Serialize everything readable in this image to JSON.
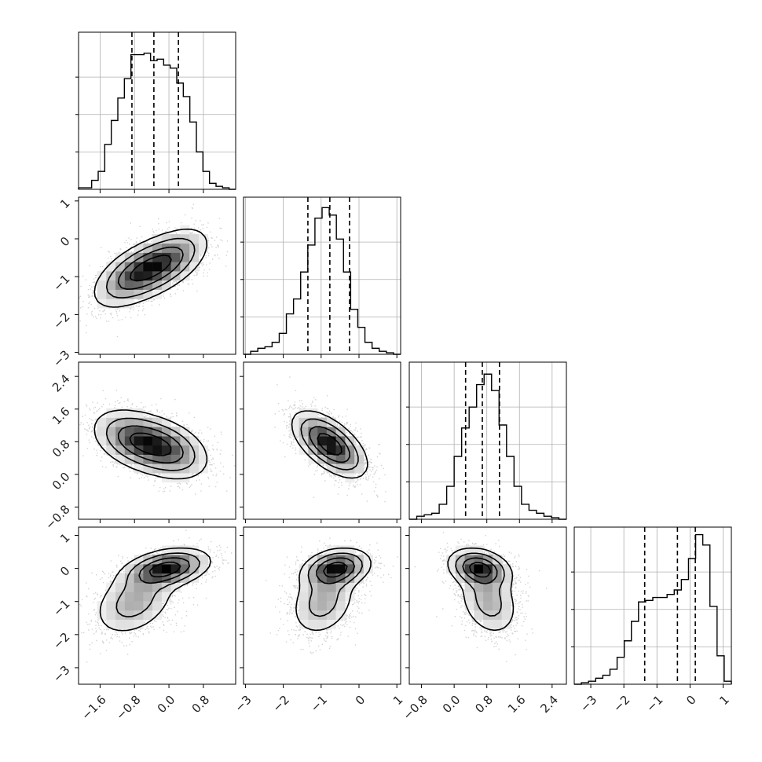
{
  "chart_data": {
    "type": "corner",
    "n_params": 4,
    "grid": true,
    "colors": {
      "ink": "#000000",
      "scatter": "#7f7f7f",
      "grid": "#b0b0b0"
    },
    "params": [
      {
        "range": [
          -2.1,
          1.55
        ],
        "ticks": [
          -1.6,
          -0.8,
          0.0,
          0.8
        ],
        "tick_labels": [
          "−1.6",
          "−0.8",
          "0.0",
          "0.8"
        ],
        "quantiles": [
          -0.86,
          -0.35,
          0.22
        ],
        "hist": [
          0.01,
          0.01,
          0.06,
          0.12,
          0.3,
          0.46,
          0.61,
          0.74,
          0.9,
          0.9,
          0.91,
          0.86,
          0.87,
          0.83,
          0.81,
          0.71,
          0.62,
          0.45,
          0.25,
          0.12,
          0.04,
          0.02,
          0.01,
          0.0
        ],
        "mixture": [
          [
            -0.8,
            0.5,
            0.5
          ],
          [
            -0.05,
            0.5,
            0.5
          ]
        ]
      },
      {
        "range": [
          -3.05,
          1.1
        ],
        "ticks": [
          -3,
          -2,
          -1,
          0,
          1
        ],
        "tick_labels": [
          "−3",
          "−2",
          "−1",
          "0",
          "1"
        ],
        "quantiles": [
          -1.35,
          -0.77,
          -0.25
        ],
        "hist": [
          0.0,
          0.02,
          0.04,
          0.05,
          0.08,
          0.14,
          0.27,
          0.37,
          0.55,
          0.73,
          0.91,
          0.98,
          0.93,
          0.77,
          0.55,
          0.3,
          0.18,
          0.08,
          0.04,
          0.02,
          0.01,
          0.0
        ],
        "mixture": [
          [
            -0.95,
            0.45,
            0.5
          ],
          [
            -0.6,
            0.45,
            0.5
          ]
        ]
      },
      {
        "range": [
          -1.1,
          2.75
        ],
        "ticks": [
          -0.8,
          0.0,
          0.8,
          1.6,
          2.4
        ],
        "tick_labels": [
          "−0.8",
          "0.0",
          "0.8",
          "1.6",
          "2.4"
        ],
        "quantiles": [
          0.28,
          0.69,
          1.11
        ],
        "hist": [
          0.0,
          0.02,
          0.03,
          0.04,
          0.1,
          0.22,
          0.42,
          0.61,
          0.75,
          0.9,
          0.97,
          0.86,
          0.63,
          0.42,
          0.22,
          0.1,
          0.06,
          0.04,
          0.02,
          0.01,
          0.0
        ],
        "mixture": [
          [
            0.85,
            0.38,
            0.5
          ],
          [
            0.62,
            0.38,
            0.5
          ]
        ]
      },
      {
        "range": [
          -3.5,
          1.25
        ],
        "ticks": [
          -3,
          -2,
          -1,
          0,
          1
        ],
        "tick_labels": [
          "−3",
          "−2",
          "−1",
          "0",
          "1"
        ],
        "quantiles": [
          -1.37,
          -0.38,
          0.16
        ],
        "hist": [
          0.0,
          0.01,
          0.02,
          0.04,
          0.06,
          0.1,
          0.18,
          0.29,
          0.42,
          0.55,
          0.56,
          0.58,
          0.58,
          0.6,
          0.63,
          0.7,
          0.84,
          1.0,
          0.93,
          0.52,
          0.19,
          0.02
        ],
        "mixture": [
          [
            -1.0,
            0.55,
            0.4
          ],
          [
            0.0,
            0.3,
            0.6
          ]
        ]
      }
    ]
  }
}
